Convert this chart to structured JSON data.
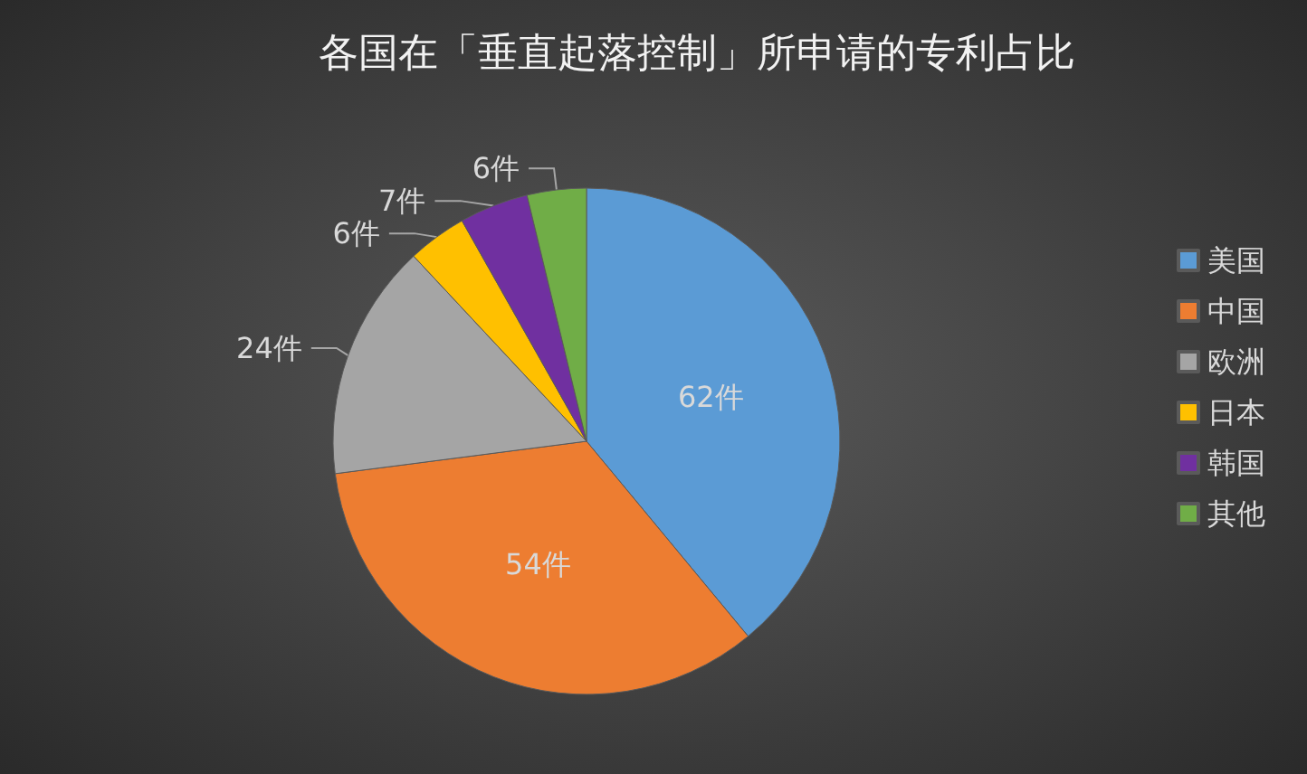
{
  "chart_data": {
    "type": "pie",
    "title": "各国在「垂直起落控制」所申请的专利占比",
    "categories": [
      "美国",
      "中国",
      "欧洲",
      "日本",
      "韩国",
      "其他"
    ],
    "values": [
      62,
      54,
      24,
      6,
      7,
      6
    ],
    "colors": [
      "#5b9bd5",
      "#ed7d31",
      "#a5a5a5",
      "#ffc000",
      "#7030a0",
      "#70ad47"
    ],
    "value_labels": [
      "62件",
      "54件",
      "24件",
      "6件",
      "7件",
      "6件"
    ],
    "legend": "right"
  }
}
